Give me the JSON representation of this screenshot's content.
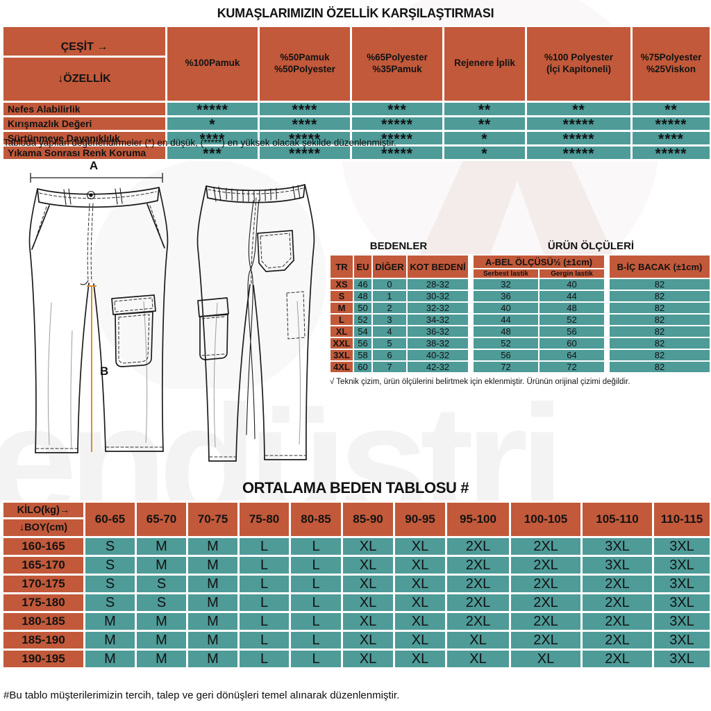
{
  "colors": {
    "header_orange": "#C2593A",
    "cell_teal": "#4E9B98",
    "measure_line_orange": "#D98E2F"
  },
  "fabric_table": {
    "title": "KUMAŞLARIMIZIN ÖZELLİK KARŞILAŞTIRMASI",
    "corner_top": "ÇEŞİT →",
    "corner_bottom": "↓ÖZELLİK",
    "columns": [
      "%100Pamuk",
      "%50Pamuk\n%50Polyester",
      "%65Polyester\n%35Pamuk",
      "Rejenere İplik",
      "%100 Polyester\n(İçi Kapitoneli)",
      "%75Polyester\n%25Viskon"
    ],
    "rows": [
      {
        "label": "Nefes Alabilirlik",
        "values": [
          "*****",
          "****",
          "***",
          "**",
          "**",
          "**"
        ]
      },
      {
        "label": "Kırışmazlık Değeri",
        "values": [
          "*",
          "****",
          "*****",
          "**",
          "*****",
          "*****"
        ]
      },
      {
        "label": "Sürtünmeye Dayanıklılık",
        "values": [
          "****",
          "*****",
          "*****",
          "*",
          "*****",
          "****"
        ]
      },
      {
        "label": "Yıkama Sonrası Renk Koruma",
        "values": [
          "***",
          "*****",
          "*****",
          "*",
          "*****",
          "*****"
        ]
      }
    ],
    "footnote": "Tabloda yapılan değerlendirmeler (*) en düşük, (*****) en yüksek olacak şekilde düzenlenmiştir."
  },
  "diagram": {
    "label_a": "A",
    "label_b": "B"
  },
  "sizes": {
    "title_left": "BEDENLER",
    "title_right": "ÜRÜN ÖLÇÜLERİ",
    "headers": {
      "tr": "TR",
      "eu": "EU",
      "diger": "DİĞER",
      "kot": "KOT BEDENİ",
      "abel": "A-BEL ÖLÇÜSÜ½ (±1cm)",
      "serbest": "Serbest lastik",
      "gergin": "Gergin lastik",
      "bic": "B-İÇ BACAK (±1cm)"
    },
    "rows": [
      [
        "XS",
        "46",
        "0",
        "28-32",
        "32",
        "40",
        "82"
      ],
      [
        "S",
        "48",
        "1",
        "30-32",
        "36",
        "44",
        "82"
      ],
      [
        "M",
        "50",
        "2",
        "32-32",
        "40",
        "48",
        "82"
      ],
      [
        "L",
        "52",
        "3",
        "34-32",
        "44",
        "52",
        "82"
      ],
      [
        "XL",
        "54",
        "4",
        "36-32",
        "48",
        "56",
        "82"
      ],
      [
        "XXL",
        "56",
        "5",
        "38-32",
        "52",
        "60",
        "82"
      ],
      [
        "3XL",
        "58",
        "6",
        "40-32",
        "56",
        "64",
        "82"
      ],
      [
        "4XL",
        "60",
        "7",
        "42-32",
        "72",
        "72",
        "82"
      ]
    ],
    "footnote": "√ Teknik çizim, ürün ölçülerini belirtmek için eklenmiştir. Ürünün orijinal çizimi değildir."
  },
  "size_chart": {
    "title": "ORTALAMA BEDEN TABLOSU #",
    "corner_top": "KİLO(kg)→",
    "corner_bottom": "↓BOY(cm)",
    "columns": [
      "60-65",
      "65-70",
      "70-75",
      "75-80",
      "80-85",
      "85-90",
      "90-95",
      "95-100",
      "100-105",
      "105-110",
      "110-115"
    ],
    "rows": [
      {
        "label": "160-165",
        "values": [
          "S",
          "M",
          "M",
          "L",
          "L",
          "XL",
          "XL",
          "2XL",
          "2XL",
          "3XL",
          "3XL"
        ]
      },
      {
        "label": "165-170",
        "values": [
          "S",
          "M",
          "M",
          "L",
          "L",
          "XL",
          "XL",
          "2XL",
          "2XL",
          "3XL",
          "3XL"
        ]
      },
      {
        "label": "170-175",
        "values": [
          "S",
          "S",
          "M",
          "L",
          "L",
          "XL",
          "XL",
          "2XL",
          "2XL",
          "2XL",
          "3XL"
        ]
      },
      {
        "label": "175-180",
        "values": [
          "S",
          "S",
          "M",
          "L",
          "L",
          "XL",
          "XL",
          "2XL",
          "2XL",
          "2XL",
          "3XL"
        ]
      },
      {
        "label": "180-185",
        "values": [
          "M",
          "M",
          "M",
          "L",
          "L",
          "XL",
          "XL",
          "2XL",
          "2XL",
          "2XL",
          "3XL"
        ]
      },
      {
        "label": "185-190",
        "values": [
          "M",
          "M",
          "M",
          "L",
          "L",
          "XL",
          "XL",
          "XL",
          "2XL",
          "2XL",
          "3XL"
        ]
      },
      {
        "label": "190-195",
        "values": [
          "M",
          "M",
          "M",
          "L",
          "L",
          "XL",
          "XL",
          "XL",
          "XL",
          "2XL",
          "3XL"
        ]
      }
    ],
    "footnote": "#Bu tablo müşterilerimizin tercih, talep ve geri dönüşleri temel alınarak düzenlenmiştir."
  },
  "watermark": "endüstri"
}
